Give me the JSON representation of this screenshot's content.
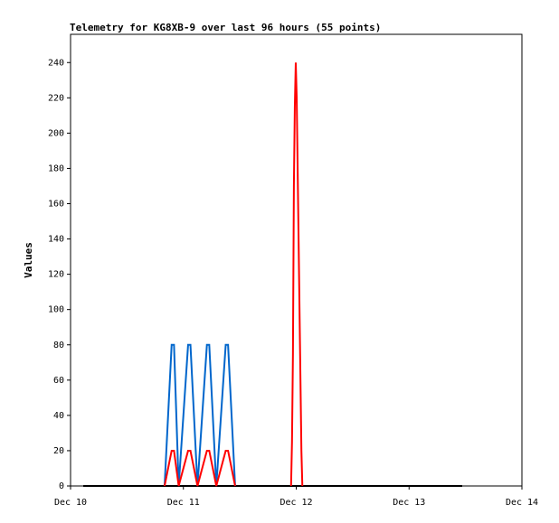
{
  "chart_data": {
    "type": "line",
    "title": "Telemetry for KG8XB-9 over last 96 hours (55 points)",
    "y_label": "Values",
    "xlim": [
      0,
      96
    ],
    "xticks": [
      {
        "value": 0,
        "label": "Dec 10"
      },
      {
        "value": 24,
        "label": "Dec 11"
      },
      {
        "value": 48,
        "label": "Dec 12"
      },
      {
        "value": 72,
        "label": "Dec 13"
      },
      {
        "value": 96,
        "label": "Dec 14"
      }
    ],
    "ylim": [
      0,
      256
    ],
    "yticks": [
      0,
      20,
      40,
      60,
      80,
      100,
      120,
      140,
      160,
      180,
      200,
      220,
      240
    ],
    "series": [
      {
        "color": "#000000",
        "x": [
          2.7,
          83.3
        ],
        "values": [
          0,
          0
        ]
      },
      {
        "color": "#0066cc",
        "x": [
          20,
          21.5,
          22,
          23,
          25,
          25.5,
          27,
          29,
          29.5,
          31,
          33,
          33.5,
          35
        ],
        "values": [
          0,
          80,
          80,
          0,
          80,
          80,
          0,
          80,
          80,
          0,
          80,
          80,
          0
        ]
      },
      {
        "color": "#ff0000",
        "x": [
          20,
          21.5,
          22,
          23,
          25,
          25.5,
          27,
          29,
          29.5,
          31,
          33,
          33.5,
          35
        ],
        "values": [
          0,
          20,
          20,
          0,
          20,
          20,
          0,
          20,
          20,
          0,
          20,
          20,
          0
        ]
      },
      {
        "color": "#ff0000",
        "x": [
          46.9,
          47.1,
          47.3,
          47.5,
          47.7,
          47.9,
          48.1,
          48.3,
          48.5,
          48.7,
          48.9,
          49.1,
          49.3
        ],
        "values": [
          0,
          25,
          75,
          170,
          215,
          240,
          220,
          180,
          140,
          100,
          60,
          20,
          0
        ]
      }
    ]
  }
}
